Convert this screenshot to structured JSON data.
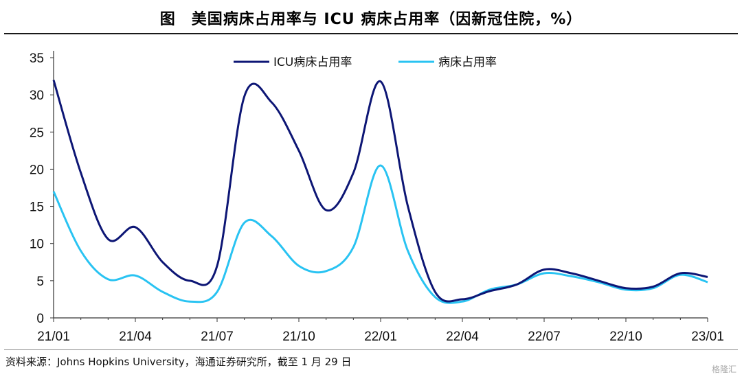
{
  "title": "图　美国病床占用率与 ICU 病床占用率（因新冠住院，%）",
  "source": "资料来源：Johns Hopkins University，海通证券研究所，截至 1 月 29 日",
  "watermark": "格隆汇",
  "chart_data": {
    "type": "line",
    "title": "美国病床占用率与 ICU 病床占用率（因新冠住院，%）",
    "xlabel": "",
    "ylabel": "",
    "ylim": [
      0,
      35
    ],
    "yticks": [
      0,
      5,
      10,
      15,
      20,
      25,
      30,
      35
    ],
    "xticks": [
      "21/01",
      "21/04",
      "21/07",
      "21/10",
      "22/01",
      "22/04",
      "22/07",
      "22/10",
      "23/01"
    ],
    "grid": false,
    "legend_position": "top-center",
    "x": [
      "21/01",
      "21/02",
      "21/03",
      "21/04",
      "21/05",
      "21/06",
      "21/07",
      "21/08",
      "21/09",
      "21/10",
      "21/11",
      "21/12",
      "22/01",
      "22/02",
      "22/03",
      "22/04",
      "22/05",
      "22/06",
      "22/07",
      "22/08",
      "22/09",
      "22/10",
      "22/11",
      "22/12",
      "23/01"
    ],
    "series": [
      {
        "name": "ICU病床占用率",
        "color": "#0d1675",
        "values": [
          32.0,
          19.5,
          10.6,
          12.2,
          7.5,
          5.0,
          7.0,
          29.8,
          29.0,
          22.5,
          14.5,
          19.5,
          31.8,
          15.0,
          3.5,
          2.5,
          3.6,
          4.5,
          6.5,
          6.0,
          5.0,
          4.0,
          4.2,
          6.0,
          5.5
        ]
      },
      {
        "name": "病床占用率",
        "color": "#29c3f2",
        "values": [
          17.0,
          9.0,
          5.2,
          5.7,
          3.5,
          2.2,
          3.5,
          12.8,
          11.0,
          7.0,
          6.3,
          9.5,
          20.5,
          9.0,
          2.8,
          2.2,
          3.8,
          4.5,
          6.0,
          5.6,
          4.8,
          3.8,
          4.0,
          5.8,
          4.8
        ]
      }
    ]
  }
}
